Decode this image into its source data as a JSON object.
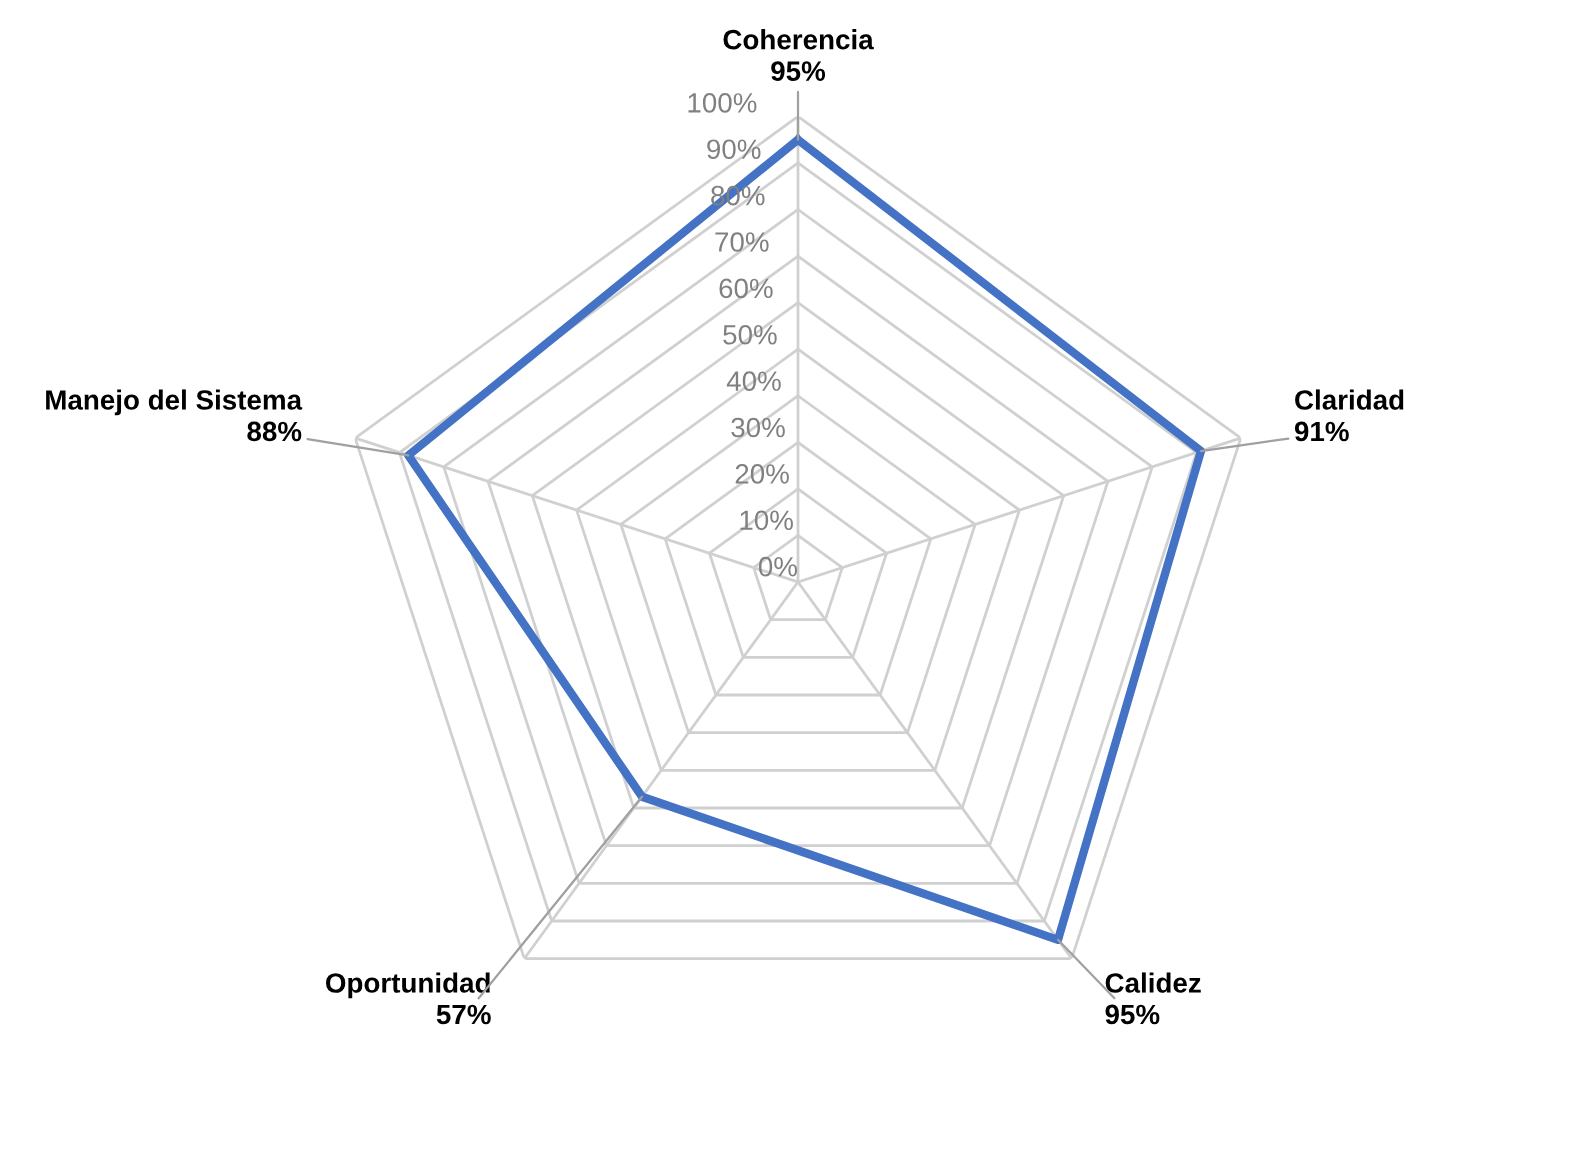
{
  "chart_data": {
    "type": "radar",
    "categories": [
      "Coherencia",
      "Claridad",
      "Calidez",
      "Oportunidad",
      "Manejo del Sistema"
    ],
    "series": [
      {
        "color": "#4472c4",
        "values": [
          95,
          91,
          95,
          57,
          88
        ],
        "value_labels": [
          "95%",
          "91%",
          "95%",
          "57%",
          "88%"
        ]
      }
    ],
    "ylim": [
      0,
      100
    ],
    "yticks": [
      {
        "value": 0,
        "label": "0%"
      },
      {
        "value": 10,
        "label": "10%"
      },
      {
        "value": 20,
        "label": "20%"
      },
      {
        "value": 30,
        "label": "30%"
      },
      {
        "value": 40,
        "label": "40%"
      },
      {
        "value": 50,
        "label": "50%"
      },
      {
        "value": 60,
        "label": "60%"
      },
      {
        "value": 70,
        "label": "70%"
      },
      {
        "value": 80,
        "label": "80%"
      },
      {
        "value": 90,
        "label": "90%"
      },
      {
        "value": 100,
        "label": "100%"
      }
    ],
    "grid": true,
    "marker": "none",
    "line_style": "solid"
  }
}
